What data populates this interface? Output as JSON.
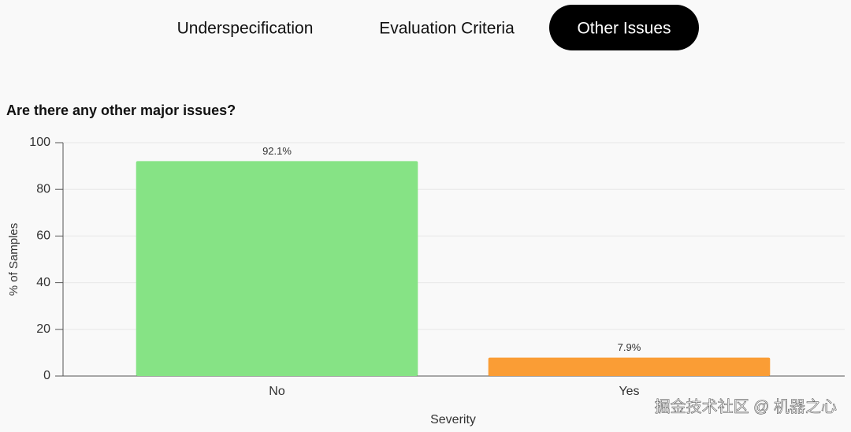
{
  "tabs": [
    "Underspecification",
    "Evaluation Criteria",
    "Other Issues"
  ],
  "active_tab": 2,
  "chart_data": {
    "type": "bar",
    "title": "Are there any other major issues?",
    "categories": [
      "No",
      "Yes"
    ],
    "values": [
      92.1,
      7.9
    ],
    "value_labels": [
      "92.1%",
      "7.9%"
    ],
    "colors": [
      "#86e385",
      "#fa9d35"
    ],
    "x_label": "Severity",
    "y_label": "% of Samples",
    "ylim": [
      0,
      100
    ],
    "yticks": [
      0,
      20,
      40,
      60,
      80,
      100
    ],
    "grid": true
  },
  "watermark": "掘金技术社区 @ 机器之心"
}
